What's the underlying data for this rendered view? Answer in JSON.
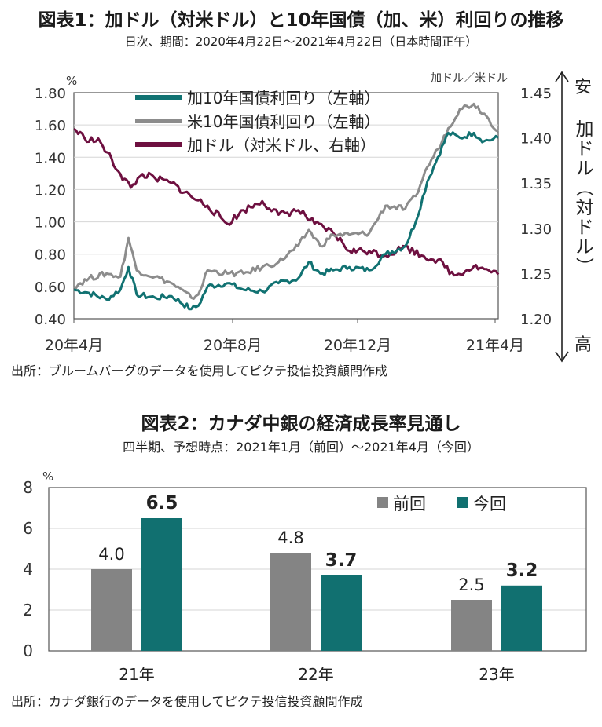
{
  "chart1": {
    "title": "図表1：加ドル（対米ドル）と10年国債（加、米）利回りの推移",
    "subtitle": "日次、期間：2020年4月22日～2021年4月22日（日本時間正午）",
    "source": "出所：ブルームバーグのデータを使用してピクテ投信投資顧問作成",
    "left_unit": "%",
    "right_unit": "加ドル／米ドル",
    "right_top_label": "安",
    "right_bottom_label": "高",
    "right_axis_title": "加ドル（対ドル）",
    "colors": {
      "ca": "#117272",
      "us": "#8c8c8c",
      "cad": "#6e1040"
    }
  },
  "chart2": {
    "title": "図表2：カナダ中銀の経済成長率見通し",
    "subtitle": "四半期、予想時点：2021年1月（前回）～2021年4月（今回）",
    "source": "出所：カナダ銀行のデータを使用してピクテ投信投資顧問作成",
    "unit": "%",
    "colors": {
      "prev": "#848484",
      "curr": "#117070"
    }
  },
  "chart_data": [
    {
      "type": "line",
      "x_ticks": [
        "20年4月",
        "20年8月",
        "20年12月",
        "21年4月"
      ],
      "y_left_ticks": [
        "1.80",
        "1.60",
        "1.40",
        "1.20",
        "1.00",
        "0.80",
        "0.60",
        "0.40"
      ],
      "y_left_range": [
        0.4,
        1.8
      ],
      "y_right_ticks": [
        "1.45",
        "1.40",
        "1.35",
        "1.30",
        "1.25",
        "1.20"
      ],
      "y_right_range_inverted": [
        1.45,
        1.2
      ],
      "x_range": [
        "2020-04-22",
        "2021-04-22"
      ],
      "grid": true,
      "legend_position": "top-center",
      "series": [
        {
          "name": "加10年国債利回り（左軸）",
          "axis": "left",
          "points": [
            [
              "2020-04-22",
              0.58
            ],
            [
              "2020-05-05",
              0.56
            ],
            [
              "2020-05-20",
              0.52
            ],
            [
              "2020-06-01",
              0.58
            ],
            [
              "2020-06-08",
              0.72
            ],
            [
              "2020-06-15",
              0.55
            ],
            [
              "2020-07-01",
              0.53
            ],
            [
              "2020-07-15",
              0.54
            ],
            [
              "2020-08-01",
              0.46
            ],
            [
              "2020-08-07",
              0.48
            ],
            [
              "2020-08-15",
              0.6
            ],
            [
              "2020-09-01",
              0.62
            ],
            [
              "2020-09-15",
              0.58
            ],
            [
              "2020-10-01",
              0.57
            ],
            [
              "2020-10-15",
              0.62
            ],
            [
              "2020-11-01",
              0.65
            ],
            [
              "2020-11-10",
              0.75
            ],
            [
              "2020-11-20",
              0.68
            ],
            [
              "2020-12-01",
              0.7
            ],
            [
              "2020-12-15",
              0.72
            ],
            [
              "2021-01-01",
              0.7
            ],
            [
              "2021-01-15",
              0.8
            ],
            [
              "2021-02-01",
              0.85
            ],
            [
              "2021-02-10",
              1.0
            ],
            [
              "2021-02-20",
              1.25
            ],
            [
              "2021-03-01",
              1.4
            ],
            [
              "2021-03-10",
              1.55
            ],
            [
              "2021-03-20",
              1.52
            ],
            [
              "2021-04-01",
              1.55
            ],
            [
              "2021-04-10",
              1.5
            ],
            [
              "2021-04-22",
              1.52
            ]
          ]
        },
        {
          "name": "米10年国債利回り（左軸）",
          "axis": "left",
          "points": [
            [
              "2020-04-22",
              0.6
            ],
            [
              "2020-05-05",
              0.65
            ],
            [
              "2020-05-20",
              0.68
            ],
            [
              "2020-06-01",
              0.66
            ],
            [
              "2020-06-08",
              0.9
            ],
            [
              "2020-06-15",
              0.7
            ],
            [
              "2020-07-01",
              0.66
            ],
            [
              "2020-07-15",
              0.62
            ],
            [
              "2020-08-01",
              0.53
            ],
            [
              "2020-08-07",
              0.55
            ],
            [
              "2020-08-15",
              0.7
            ],
            [
              "2020-09-01",
              0.68
            ],
            [
              "2020-09-15",
              0.68
            ],
            [
              "2020-10-01",
              0.72
            ],
            [
              "2020-10-15",
              0.75
            ],
            [
              "2020-11-01",
              0.85
            ],
            [
              "2020-11-10",
              0.95
            ],
            [
              "2020-11-20",
              0.85
            ],
            [
              "2020-12-01",
              0.92
            ],
            [
              "2020-12-15",
              0.92
            ],
            [
              "2021-01-01",
              0.93
            ],
            [
              "2021-01-15",
              1.1
            ],
            [
              "2021-02-01",
              1.08
            ],
            [
              "2021-02-10",
              1.16
            ],
            [
              "2021-02-20",
              1.34
            ],
            [
              "2021-03-01",
              1.45
            ],
            [
              "2021-03-10",
              1.58
            ],
            [
              "2021-03-20",
              1.7
            ],
            [
              "2021-04-01",
              1.73
            ],
            [
              "2021-04-10",
              1.67
            ],
            [
              "2021-04-22",
              1.56
            ]
          ]
        },
        {
          "name": "加ドル（対米ドル、右軸）",
          "axis": "right",
          "points": [
            [
              "2020-04-22",
              1.41
            ],
            [
              "2020-05-01",
              1.4
            ],
            [
              "2020-05-15",
              1.395
            ],
            [
              "2020-06-01",
              1.36
            ],
            [
              "2020-06-10",
              1.345
            ],
            [
              "2020-06-20",
              1.36
            ],
            [
              "2020-07-01",
              1.355
            ],
            [
              "2020-07-15",
              1.35
            ],
            [
              "2020-08-01",
              1.335
            ],
            [
              "2020-08-15",
              1.325
            ],
            [
              "2020-09-01",
              1.305
            ],
            [
              "2020-09-15",
              1.32
            ],
            [
              "2020-10-01",
              1.33
            ],
            [
              "2020-10-15",
              1.315
            ],
            [
              "2020-11-01",
              1.32
            ],
            [
              "2020-11-15",
              1.305
            ],
            [
              "2020-12-01",
              1.295
            ],
            [
              "2020-12-15",
              1.275
            ],
            [
              "2021-01-01",
              1.275
            ],
            [
              "2021-01-15",
              1.27
            ],
            [
              "2021-02-01",
              1.28
            ],
            [
              "2021-02-15",
              1.27
            ],
            [
              "2021-03-01",
              1.265
            ],
            [
              "2021-03-15",
              1.248
            ],
            [
              "2021-04-01",
              1.258
            ],
            [
              "2021-04-10",
              1.255
            ],
            [
              "2021-04-22",
              1.249
            ]
          ]
        }
      ]
    },
    {
      "type": "bar",
      "categories": [
        "21年",
        "22年",
        "23年"
      ],
      "ylim": [
        0,
        8
      ],
      "y_ticks": [
        "8",
        "6",
        "4",
        "2",
        "0"
      ],
      "legend_position": "top-right",
      "series": [
        {
          "name": "前回",
          "values": [
            4.0,
            4.8,
            2.5
          ],
          "labels": [
            "4.0",
            "4.8",
            "2.5"
          ]
        },
        {
          "name": "今回",
          "values": [
            6.5,
            3.7,
            3.2
          ],
          "labels": [
            "6.5",
            "3.7",
            "3.2"
          ]
        }
      ]
    }
  ]
}
